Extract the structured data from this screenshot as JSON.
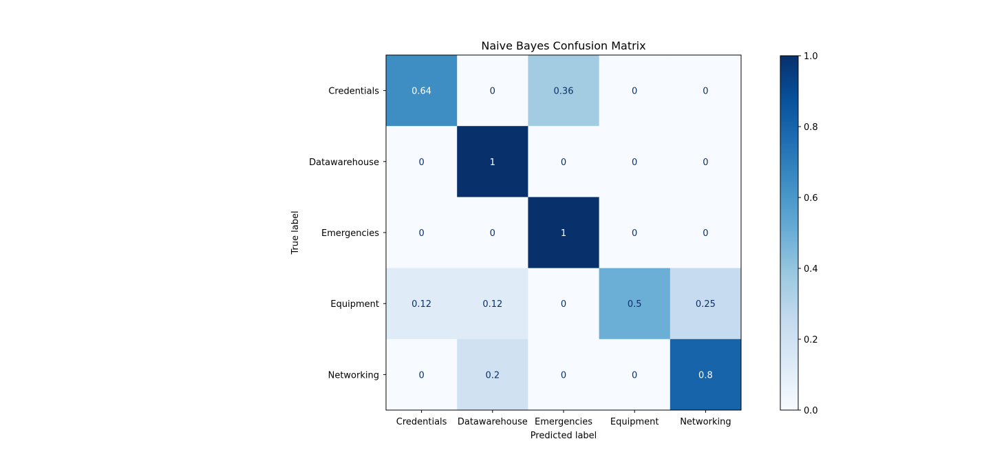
{
  "chart_data": {
    "type": "heatmap",
    "title": "Naive Bayes Confusion Matrix",
    "xlabel": "Predicted label",
    "ylabel": "True label",
    "x_categories": [
      "Credentials",
      "Datawarehouse",
      "Emergencies",
      "Equipment",
      "Networking"
    ],
    "y_categories": [
      "Credentials",
      "Datawarehouse",
      "Emergencies",
      "Equipment",
      "Networking"
    ],
    "values": [
      [
        0.64,
        0,
        0.36,
        0,
        0
      ],
      [
        0,
        1,
        0,
        0,
        0
      ],
      [
        0,
        0,
        1,
        0,
        0
      ],
      [
        0.12,
        0.12,
        0,
        0.5,
        0.25
      ],
      [
        0,
        0.2,
        0,
        0,
        0.8
      ]
    ],
    "value_labels": [
      [
        "0.64",
        "0",
        "0.36",
        "0",
        "0"
      ],
      [
        "0",
        "1",
        "0",
        "0",
        "0"
      ],
      [
        "0",
        "0",
        "1",
        "0",
        "0"
      ],
      [
        "0.12",
        "0.12",
        "0",
        "0.5",
        "0.25"
      ],
      [
        "0",
        "0.2",
        "0",
        "0",
        "0.8"
      ]
    ],
    "colormap": "Blues",
    "colormap_stops": [
      "#f7fbff",
      "#deebf7",
      "#c6dbef",
      "#9ecae1",
      "#6baed6",
      "#4292c6",
      "#2171b5",
      "#08519c",
      "#08306b"
    ],
    "text_color_light": "#ffffff",
    "text_color_dark": "#08306b",
    "colorbar": {
      "range": [
        0.0,
        1.0
      ],
      "ticks": [
        0.0,
        0.2,
        0.4,
        0.6,
        0.8,
        1.0
      ],
      "tick_labels": [
        "0.0",
        "0.2",
        "0.4",
        "0.6",
        "0.8",
        "1.0"
      ]
    }
  }
}
